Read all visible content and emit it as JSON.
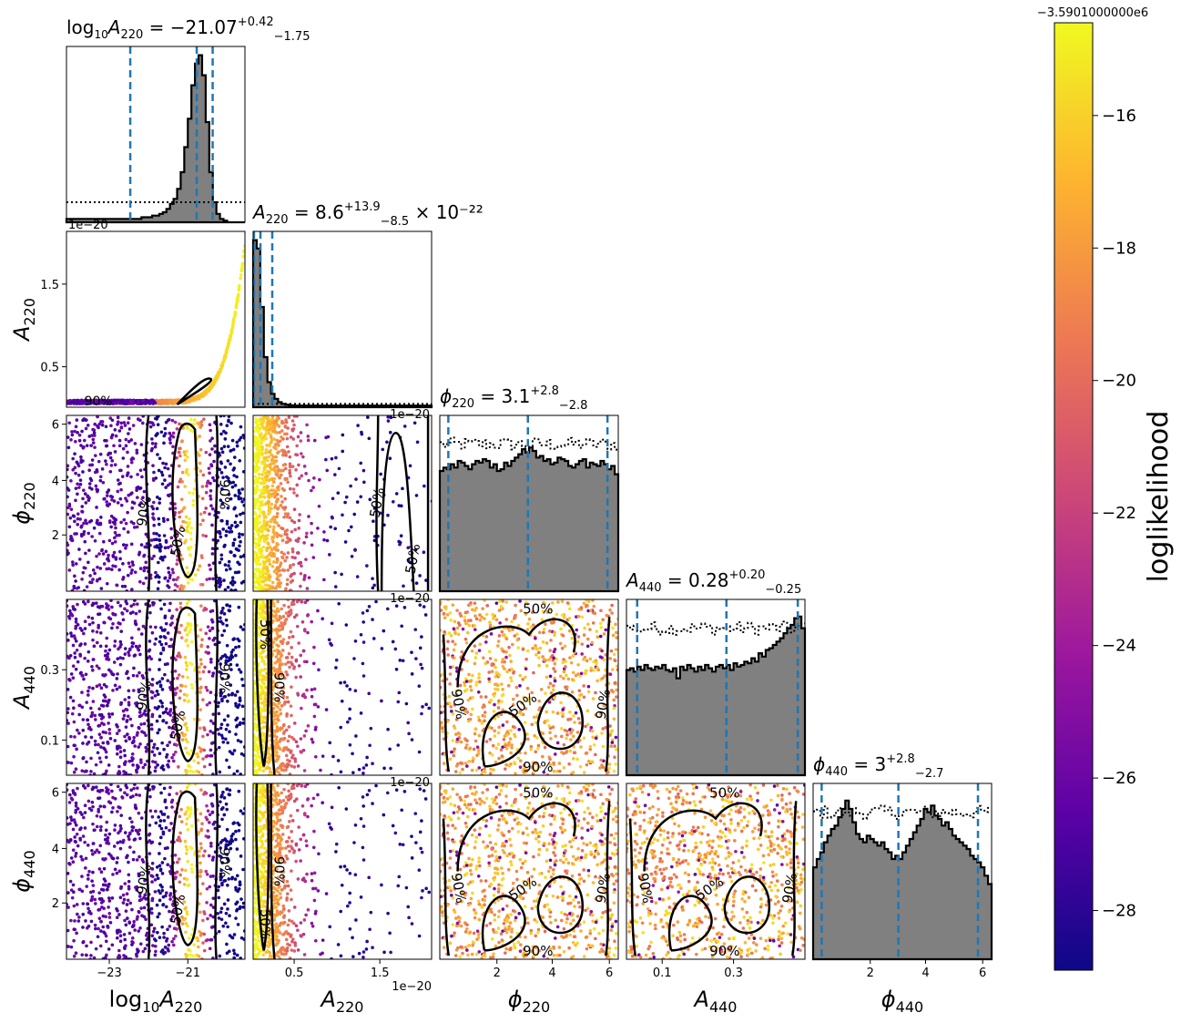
{
  "figure": {
    "params": [
      {
        "id": "log10A220",
        "label": "log10A220",
        "title": "log10A220 = −21.07 +0.42 −1.75"
      },
      {
        "id": "A220",
        "label": "A220",
        "title": "A220 = 8.6 +13.9 −8.5 × 10−22"
      },
      {
        "id": "phi220",
        "label": "ϕ220",
        "title": "ϕ220 = 3.1 +2.8 −2.8"
      },
      {
        "id": "A440",
        "label": "A440",
        "title": "A440 = 0.28 +0.20 −0.25"
      },
      {
        "id": "phi440",
        "label": "ϕ440",
        "title": "ϕ440 = 3 +2.8 −2.7"
      }
    ],
    "axis_labels": {
      "log10A220": {
        "base": "log",
        "sub1": "10",
        "main": "A",
        "sub2": "220"
      },
      "A220": {
        "main": "A",
        "sub": "220"
      },
      "phi220": {
        "main": "ϕ",
        "sub": "220"
      },
      "A440": {
        "main": "A",
        "sub": "440"
      },
      "phi440": {
        "main": "ϕ",
        "sub": "440"
      }
    },
    "titles": {
      "log10A220": {
        "prefix": "log",
        "sub1": "10",
        "main": "A",
        "sub2": "220",
        "eq": " = −21.07",
        "sup": "+0.42",
        "sub": "−1.75",
        "suffix": ""
      },
      "A220": {
        "prefix": "",
        "sub1": "",
        "main": "A",
        "sub2": "220",
        "eq": " = 8.6",
        "sup": "+13.9",
        "sub": "−8.5",
        "suffix": " × 10⁻²²"
      },
      "phi220": {
        "prefix": "",
        "sub1": "",
        "main": "ϕ",
        "sub2": "220",
        "eq": " = 3.1",
        "sup": "+2.8",
        "sub": "−2.8",
        "suffix": ""
      },
      "A440": {
        "prefix": "",
        "sub1": "",
        "main": "A",
        "sub2": "440",
        "eq": " = 0.28",
        "sup": "+0.20",
        "sub": "−0.25",
        "suffix": ""
      },
      "phi440": {
        "prefix": "",
        "sub1": "",
        "main": "ϕ",
        "sub2": "440",
        "eq": " = 3",
        "sup": "+2.8",
        "sub": "−2.7",
        "suffix": ""
      }
    },
    "ticks": {
      "log10A220": [
        "−23",
        "−21"
      ],
      "A220": [
        "0.5",
        "1.5"
      ],
      "phi220": [
        "2",
        "4",
        "6"
      ],
      "A440": [
        "0.1",
        "0.3"
      ],
      "phi440": [
        "2",
        "4",
        "6"
      ]
    },
    "y_ticks": {
      "A220": [
        "0.5",
        "1.5"
      ],
      "phi220": [
        "2",
        "4",
        "6"
      ],
      "A440": [
        "0.1",
        "0.3"
      ],
      "phi440": [
        "2",
        "4",
        "6"
      ]
    },
    "offset_texts": {
      "scale": "1e−20",
      "colorbar": "−3.5901000000e6"
    },
    "contour_labels": {
      "p50": "50%",
      "p90": "90%"
    }
  },
  "colorbar": {
    "label": "loglikelihood",
    "ticks": [
      "−16",
      "−18",
      "−20",
      "−22",
      "−24",
      "−26",
      "−28"
    ],
    "colormap": [
      "#0d0887",
      "#5c01a6",
      "#9c179e",
      "#cc4778",
      "#ed7953",
      "#fdb42f",
      "#f0f921"
    ]
  },
  "chart_data": {
    "type": "corner",
    "parameters": [
      "log10A220",
      "A220",
      "phi220",
      "A440",
      "phi440"
    ],
    "ranges": {
      "log10A220": [
        -24.5,
        -19.8
      ],
      "A220": [
        0.0,
        2.1
      ],
      "phi220": [
        0.0,
        6.28
      ],
      "A440": [
        0.0,
        0.5
      ],
      "phi440": [
        0.0,
        6.28
      ]
    },
    "scale_notes": {
      "A220": "values ×1e−20"
    },
    "summary": {
      "log10A220": {
        "median": -21.07,
        "plus": 0.42,
        "minus": 1.75,
        "quantiles": [
          -22.82,
          -21.07,
          -20.65
        ]
      },
      "A220": {
        "median": 8.6e-22,
        "plus": 1.39e-21,
        "minus": 8.5e-22,
        "quantiles_1e20": [
          0.01,
          0.086,
          0.225
        ]
      },
      "phi220": {
        "median": 3.1,
        "plus": 2.8,
        "minus": 2.8,
        "quantiles": [
          0.3,
          3.1,
          5.9
        ]
      },
      "A440": {
        "median": 0.28,
        "plus": 0.2,
        "minus": 0.25,
        "quantiles": [
          0.03,
          0.28,
          0.48
        ]
      },
      "phi440": {
        "median": 3,
        "plus": 2.8,
        "minus": 2.7,
        "quantiles": [
          0.3,
          3.0,
          5.8
        ]
      }
    },
    "histograms": {
      "log10A220": [
        0.02,
        0.02,
        0.02,
        0.02,
        0.02,
        0.02,
        0.02,
        0.02,
        0.02,
        0.02,
        0.02,
        0.02,
        0.02,
        0.02,
        0.02,
        0.02,
        0.02,
        0.02,
        0.02,
        0.02,
        0.02,
        0.03,
        0.03,
        0.03,
        0.04,
        0.04,
        0.05,
        0.06,
        0.08,
        0.11,
        0.14,
        0.2,
        0.3,
        0.45,
        0.62,
        0.82,
        0.95,
        1.0,
        0.88,
        0.6,
        0.3,
        0.12,
        0.05,
        0.02,
        0.01,
        0.0,
        0.0,
        0.0,
        0.0,
        0.0
      ],
      "A220": [
        1.0,
        0.95,
        0.6,
        0.3,
        0.15,
        0.08,
        0.05,
        0.03,
        0.02,
        0.015,
        0.012,
        0.01,
        0.01,
        0.01,
        0.01,
        0.01,
        0.01,
        0.01,
        0.01,
        0.01,
        0.01,
        0.01,
        0.01,
        0.01,
        0.01,
        0.01,
        0.01,
        0.01,
        0.01,
        0.01,
        0.01,
        0.01,
        0.01,
        0.01,
        0.01,
        0.01,
        0.01,
        0.01,
        0.01,
        0.01,
        0.01,
        0.01,
        0.01,
        0.01,
        0.01,
        0.01,
        0.01,
        0.01,
        0.01,
        0.01
      ],
      "phi220": [
        0.72,
        0.74,
        0.73,
        0.76,
        0.74,
        0.78,
        0.77,
        0.75,
        0.73,
        0.76,
        0.78,
        0.77,
        0.79,
        0.78,
        0.74,
        0.76,
        0.72,
        0.73,
        0.77,
        0.75,
        0.78,
        0.8,
        0.82,
        0.85,
        0.83,
        0.86,
        0.84,
        0.8,
        0.81,
        0.78,
        0.79,
        0.76,
        0.77,
        0.8,
        0.79,
        0.78,
        0.75,
        0.74,
        0.76,
        0.78,
        0.79,
        0.74,
        0.77,
        0.76,
        0.75,
        0.78,
        0.76,
        0.73,
        0.75,
        0.7
      ],
      "A440": [
        0.63,
        0.64,
        0.62,
        0.65,
        0.63,
        0.66,
        0.64,
        0.63,
        0.65,
        0.64,
        0.66,
        0.63,
        0.62,
        0.64,
        0.58,
        0.65,
        0.63,
        0.66,
        0.64,
        0.62,
        0.65,
        0.63,
        0.66,
        0.64,
        0.62,
        0.65,
        0.66,
        0.64,
        0.66,
        0.63,
        0.67,
        0.65,
        0.66,
        0.68,
        0.67,
        0.7,
        0.68,
        0.73,
        0.71,
        0.75,
        0.76,
        0.78,
        0.8,
        0.82,
        0.85,
        0.88,
        0.9,
        0.94,
        0.95,
        0.88
      ],
      "phi440": [
        0.55,
        0.6,
        0.64,
        0.7,
        0.74,
        0.78,
        0.8,
        0.85,
        0.9,
        0.95,
        0.9,
        0.82,
        0.75,
        0.72,
        0.7,
        0.74,
        0.72,
        0.7,
        0.68,
        0.7,
        0.66,
        0.64,
        0.6,
        0.62,
        0.6,
        0.64,
        0.68,
        0.72,
        0.76,
        0.8,
        0.84,
        0.9,
        0.88,
        0.92,
        0.86,
        0.84,
        0.8,
        0.82,
        0.78,
        0.74,
        0.72,
        0.7,
        0.68,
        0.66,
        0.62,
        0.6,
        0.58,
        0.55,
        0.5,
        0.45
      ]
    },
    "colorbar_range": [
      -28.9,
      -14.6
    ]
  }
}
